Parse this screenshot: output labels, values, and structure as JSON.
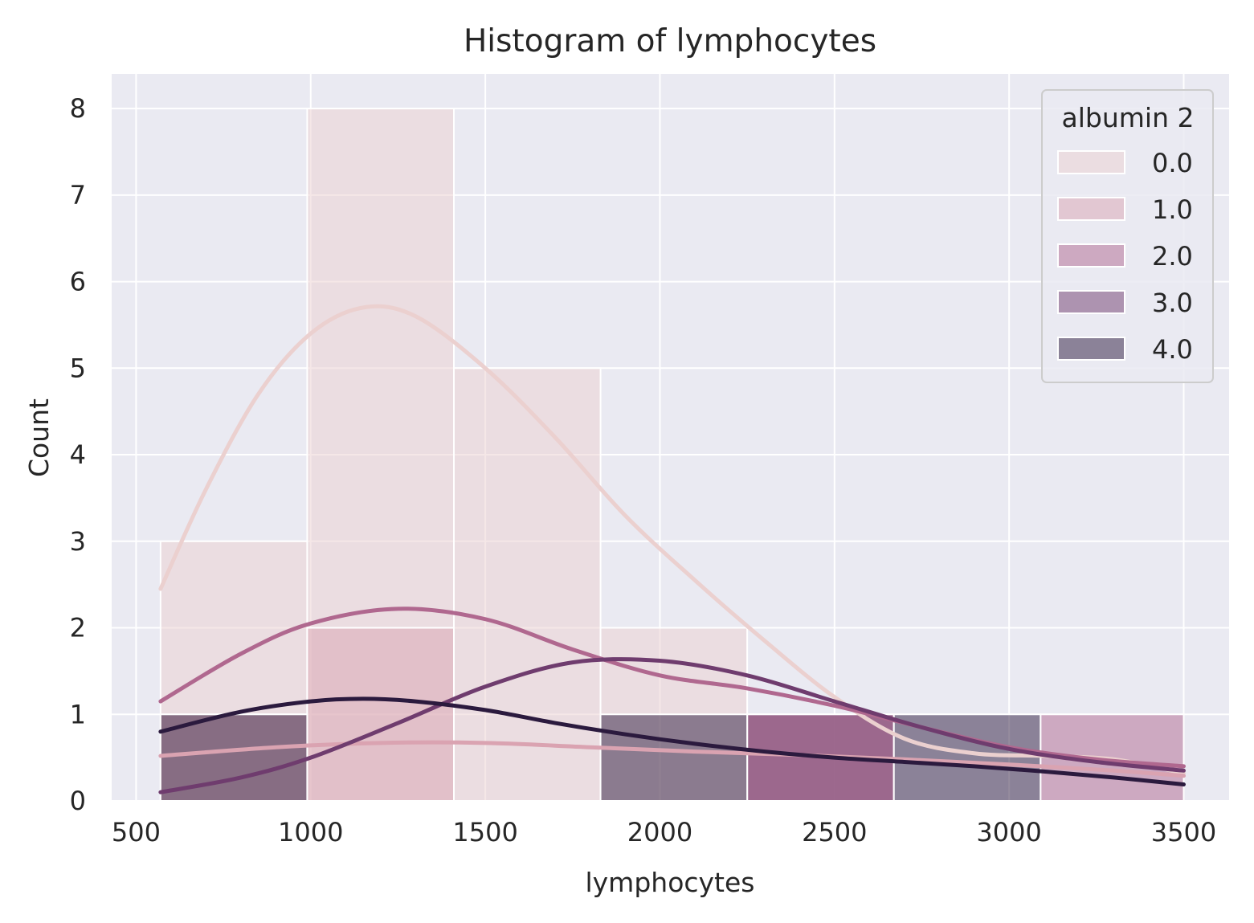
{
  "chart_data": {
    "type": "histogram",
    "title": "Histogram of lymphocytes",
    "xlabel": "lymphocytes",
    "ylabel": "Count",
    "xlim": [
      430,
      3630
    ],
    "ylim": [
      0,
      8.4
    ],
    "xticks": [
      500,
      1000,
      1500,
      2000,
      2500,
      3000,
      3500
    ],
    "yticks": [
      0,
      1,
      2,
      3,
      4,
      5,
      6,
      7,
      8
    ],
    "grid": true,
    "legend": {
      "title": "albumin 2",
      "placement": "top-right"
    },
    "bin_edges": [
      570,
      990,
      1410,
      1830,
      2250,
      2670,
      3090,
      3500
    ],
    "series": [
      {
        "name": "0.0",
        "color": "#ebd0cf",
        "counts": [
          3,
          8,
          5,
          2,
          1,
          0,
          0
        ],
        "kde": {
          "x": [
            570,
            700,
            850,
            1000,
            1150,
            1300,
            1500,
            1700,
            1900,
            2100,
            2300,
            2500,
            2700,
            2900,
            3100,
            3300,
            3500
          ],
          "y": [
            2.45,
            3.6,
            4.7,
            5.4,
            5.7,
            5.6,
            5.0,
            4.2,
            3.3,
            2.55,
            1.85,
            1.2,
            0.72,
            0.55,
            0.52,
            0.48,
            0.32
          ]
        }
      },
      {
        "name": "1.0",
        "color": "#daa3b1",
        "counts": [
          1,
          2,
          0,
          0,
          1,
          0,
          0
        ],
        "kde": {
          "x": [
            570,
            900,
            1200,
            1500,
            1800,
            2100,
            2400,
            2700,
            3000,
            3300,
            3500
          ],
          "y": [
            0.52,
            0.62,
            0.67,
            0.67,
            0.62,
            0.57,
            0.53,
            0.48,
            0.42,
            0.35,
            0.29
          ]
        }
      },
      {
        "name": "2.0",
        "color": "#b0688f",
        "counts": [
          0,
          0,
          0,
          0,
          1,
          0,
          1
        ],
        "kde": {
          "x": [
            570,
            800,
            1000,
            1250,
            1500,
            1750,
            2000,
            2250,
            2500,
            2750,
            3000,
            3250,
            3500
          ],
          "y": [
            1.15,
            1.7,
            2.05,
            2.22,
            2.1,
            1.75,
            1.45,
            1.3,
            1.1,
            0.85,
            0.62,
            0.48,
            0.4
          ]
        }
      },
      {
        "name": "3.0",
        "color": "#6f3c6e",
        "counts": [
          0,
          0,
          0,
          0,
          1,
          0,
          0
        ],
        "kde": {
          "x": [
            570,
            800,
            1000,
            1250,
            1500,
            1750,
            2000,
            2250,
            2500,
            2750,
            3000,
            3250,
            3500
          ],
          "y": [
            0.1,
            0.27,
            0.5,
            0.9,
            1.32,
            1.6,
            1.62,
            1.45,
            1.15,
            0.85,
            0.6,
            0.45,
            0.35
          ]
        }
      },
      {
        "name": "4.0",
        "color": "#2b1a3e",
        "counts": [
          1,
          0,
          0,
          1,
          0,
          1,
          0
        ],
        "kde": {
          "x": [
            570,
            800,
            1000,
            1150,
            1300,
            1500,
            1700,
            1900,
            2100,
            2300,
            2500,
            2700,
            2900,
            3100,
            3300,
            3500
          ],
          "y": [
            0.8,
            1.03,
            1.15,
            1.18,
            1.15,
            1.05,
            0.9,
            0.77,
            0.66,
            0.57,
            0.5,
            0.45,
            0.4,
            0.34,
            0.27,
            0.19
          ]
        }
      }
    ]
  }
}
